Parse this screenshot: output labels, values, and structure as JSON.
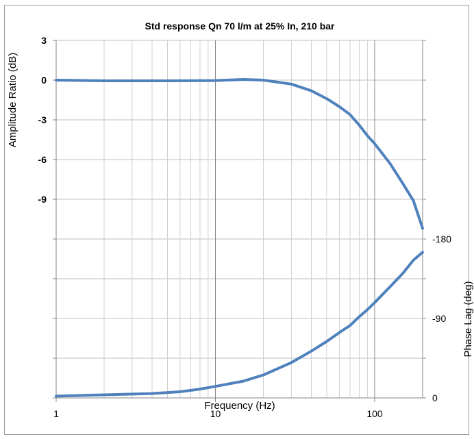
{
  "chart_data": {
    "type": "line",
    "title": "Std response Qn 70 l/m at 25% In, 210 bar",
    "xlabel": "Frequency (Hz)",
    "ylabel_left": "Amplitude Ratio (dB)",
    "ylabel_right": "Phase Lag (deg)",
    "x_scale": "log",
    "xlim": [
      1,
      200
    ],
    "x_ticks": [
      "1",
      "10",
      "100"
    ],
    "y_left_ticks": [
      "3",
      "0",
      "-3",
      "-6",
      "-9"
    ],
    "y_right_ticks": [
      "-180",
      "-90",
      "0"
    ],
    "grid": true,
    "colors": {
      "series": "#4f81bd",
      "grid": "#bfbfbf",
      "axis": "#868686"
    },
    "series": [
      {
        "axis": "left",
        "units": "dB",
        "points": [
          [
            1,
            0
          ],
          [
            2,
            -0.05
          ],
          [
            5,
            -0.05
          ],
          [
            10,
            -0.03
          ],
          [
            15,
            0.05
          ],
          [
            20,
            0.0
          ],
          [
            30,
            -0.3
          ],
          [
            40,
            -0.8
          ],
          [
            50,
            -1.4
          ],
          [
            60,
            -2.0
          ],
          [
            70,
            -2.6
          ],
          [
            80,
            -3.4
          ],
          [
            90,
            -4.2
          ],
          [
            100,
            -4.8
          ],
          [
            125,
            -6.3
          ],
          [
            150,
            -7.8
          ],
          [
            175,
            -9.1
          ],
          [
            200,
            -11.2
          ]
        ]
      },
      {
        "axis": "right",
        "units": "deg",
        "points": [
          [
            1,
            -2
          ],
          [
            2,
            -3.5
          ],
          [
            4,
            -5
          ],
          [
            6,
            -7
          ],
          [
            8,
            -10
          ],
          [
            10,
            -13
          ],
          [
            15,
            -19
          ],
          [
            20,
            -26
          ],
          [
            30,
            -40
          ],
          [
            40,
            -53
          ],
          [
            50,
            -64
          ],
          [
            60,
            -74
          ],
          [
            70,
            -82
          ],
          [
            80,
            -92
          ],
          [
            90,
            -100
          ],
          [
            100,
            -108
          ],
          [
            125,
            -126
          ],
          [
            150,
            -141
          ],
          [
            175,
            -156
          ],
          [
            200,
            -165
          ]
        ]
      }
    ]
  }
}
